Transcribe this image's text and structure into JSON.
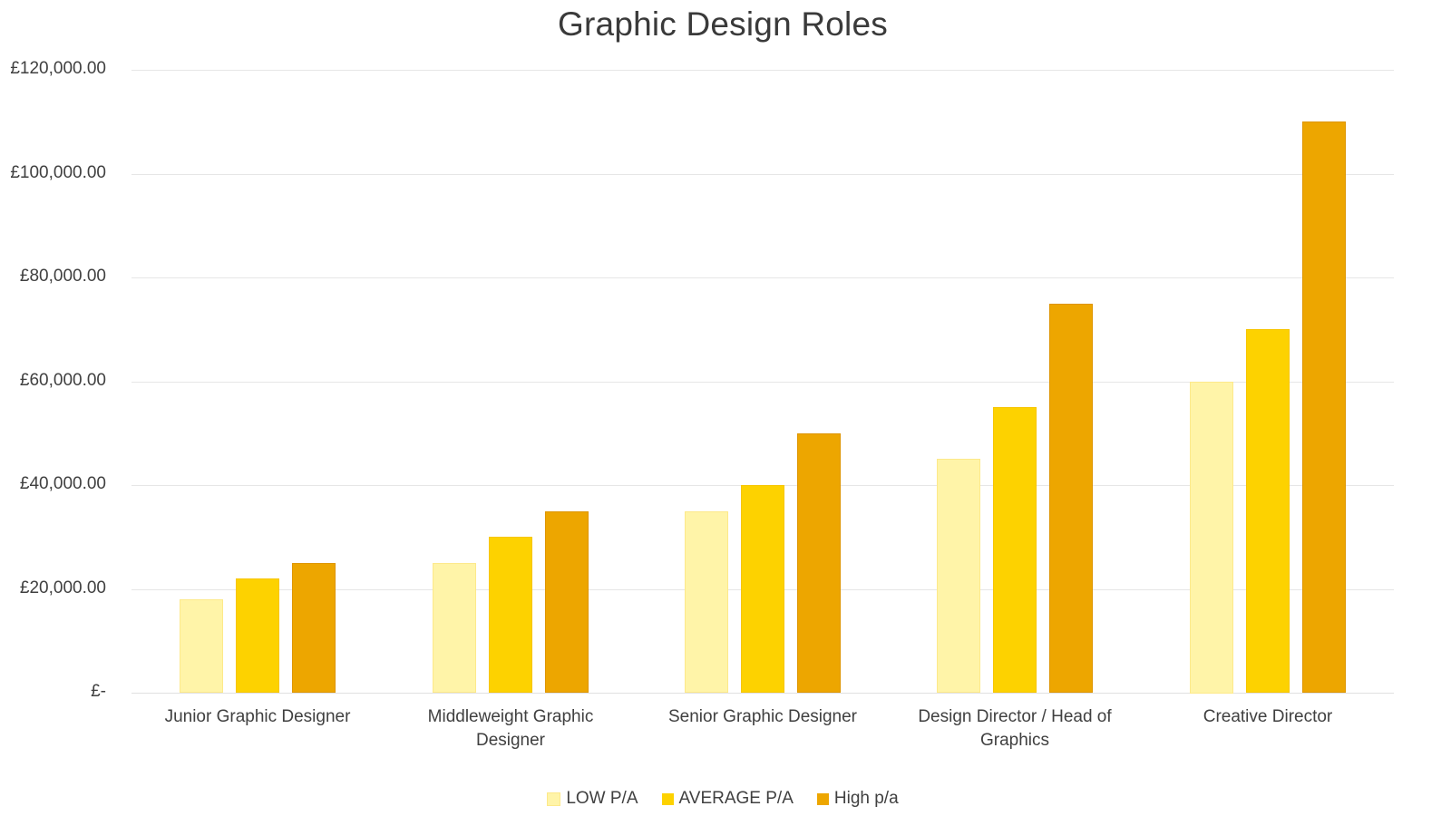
{
  "chart_data": {
    "type": "bar",
    "title": "Graphic Design Roles",
    "xlabel": "",
    "ylabel": "",
    "categories": [
      "Junior Graphic Designer",
      "Middleweight Graphic Designer",
      "Senior Graphic Designer",
      "Design Director / Head of Graphics",
      "Creative Director"
    ],
    "series": [
      {
        "name": "LOW P/A",
        "color": "#fff4a8",
        "values": [
          18000,
          25000,
          35000,
          45000,
          60000
        ]
      },
      {
        "name": "AVERAGE P/A",
        "color": "#fdd200",
        "values": [
          22000,
          30000,
          40000,
          55000,
          70000
        ]
      },
      {
        "name": "High p/a",
        "color": "#eda600",
        "values": [
          25000,
          35000,
          50000,
          75000,
          110000
        ]
      }
    ],
    "ylim": [
      0,
      120000
    ],
    "yticks": [
      0,
      20000,
      40000,
      60000,
      80000,
      100000,
      120000
    ],
    "ytick_labels": [
      "£-",
      "£20,000.00",
      "£40,000.00",
      "£60,000.00",
      "£80,000.00",
      "£100,000.00",
      "£120,000.00"
    ],
    "grid": true,
    "legend_position": "bottom"
  },
  "chart": {
    "title": "Graphic Design Roles",
    "y_axis": {
      "ticks": [
        "£-",
        "£20,000.00",
        "£40,000.00",
        "£60,000.00",
        "£80,000.00",
        "£100,000.00",
        "£120,000.00"
      ]
    },
    "x_axis": {
      "labels": [
        "Junior Graphic Designer",
        "Middleweight Graphic Designer",
        "Senior Graphic Designer",
        "Design Director / Head of Graphics",
        "Creative Director"
      ]
    },
    "legend": [
      {
        "label": "LOW P/A",
        "color": "#fff4a8"
      },
      {
        "label": "AVERAGE P/A",
        "color": "#fdd200"
      },
      {
        "label": "High p/a",
        "color": "#eda600"
      }
    ]
  }
}
